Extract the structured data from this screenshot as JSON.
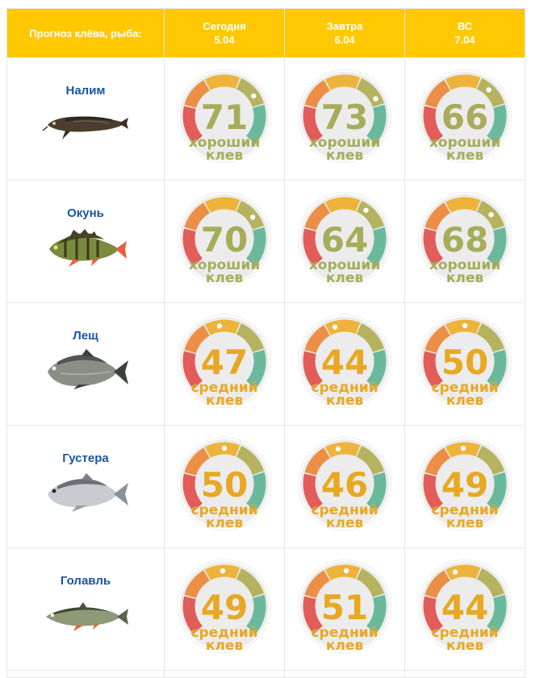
{
  "header": {
    "first_col": "Прогноз клёва, рыба:",
    "days": [
      {
        "name": "Сегодня",
        "date": "5.04"
      },
      {
        "name": "Завтра",
        "date": "6.04"
      },
      {
        "name": "ВС",
        "date": "7.04"
      }
    ]
  },
  "colors": {
    "header_bg": "#ffc800",
    "fish_name": "#1a55a5",
    "good_text": "#a8ac5a",
    "medium_text": "#e8a823",
    "gauge_red": "#e25c59",
    "gauge_orange": "#ec8e45",
    "gauge_yellow": "#eeb33a",
    "gauge_olive": "#b6b360",
    "gauge_green": "#6ab99d",
    "gauge_bg": "#ececec"
  },
  "rows": [
    {
      "fish": "Налим",
      "icon": "burbot-icon",
      "forecast": [
        {
          "value": "71",
          "label1": "хороший",
          "label2": "клев",
          "level": "good"
        },
        {
          "value": "73",
          "label1": "хороший",
          "label2": "клев",
          "level": "good"
        },
        {
          "value": "66",
          "label1": "хороший",
          "label2": "клев",
          "level": "good"
        }
      ]
    },
    {
      "fish": "Окунь",
      "icon": "perch-icon",
      "forecast": [
        {
          "value": "70",
          "label1": "хороший",
          "label2": "клев",
          "level": "good"
        },
        {
          "value": "64",
          "label1": "хороший",
          "label2": "клев",
          "level": "good"
        },
        {
          "value": "68",
          "label1": "хороший",
          "label2": "клев",
          "level": "good"
        }
      ]
    },
    {
      "fish": "Лещ",
      "icon": "bream-icon",
      "forecast": [
        {
          "value": "47",
          "label1": "средний",
          "label2": "клев",
          "level": "medium"
        },
        {
          "value": "44",
          "label1": "средний",
          "label2": "клев",
          "level": "medium"
        },
        {
          "value": "50",
          "label1": "средний",
          "label2": "клев",
          "level": "medium"
        }
      ]
    },
    {
      "fish": "Густера",
      "icon": "white-bream-icon",
      "forecast": [
        {
          "value": "50",
          "label1": "средний",
          "label2": "клев",
          "level": "medium"
        },
        {
          "value": "46",
          "label1": "средний",
          "label2": "клев",
          "level": "medium"
        },
        {
          "value": "49",
          "label1": "средний",
          "label2": "клев",
          "level": "medium"
        }
      ]
    },
    {
      "fish": "Голавль",
      "icon": "chub-icon",
      "forecast": [
        {
          "value": "49",
          "label1": "средний",
          "label2": "клев",
          "level": "medium"
        },
        {
          "value": "51",
          "label1": "средний",
          "label2": "клев",
          "level": "medium"
        },
        {
          "value": "44",
          "label1": "средний",
          "label2": "клев",
          "level": "medium"
        }
      ]
    }
  ]
}
